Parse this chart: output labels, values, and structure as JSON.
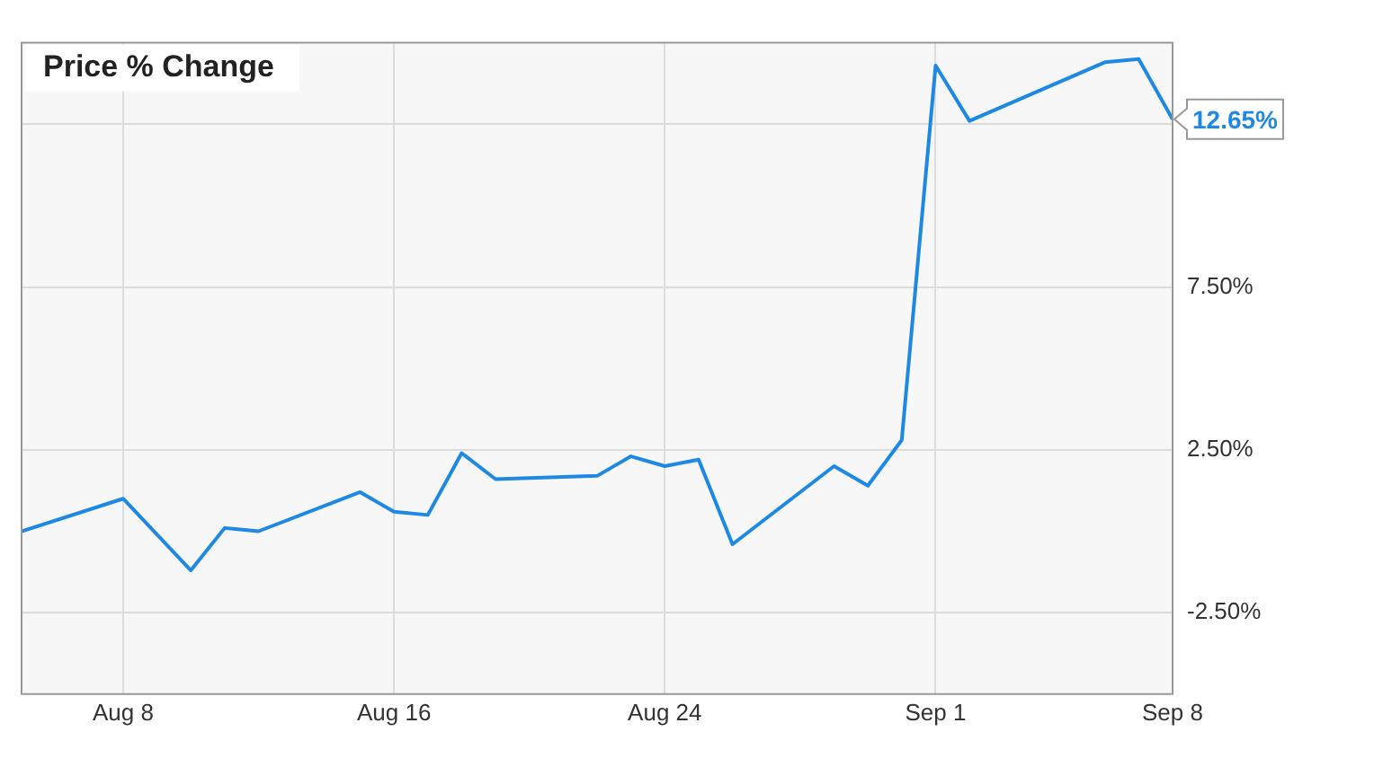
{
  "chart_data": {
    "type": "line",
    "title": "Price % Change",
    "x": [
      "--08-05",
      "--08-08",
      "--08-10",
      "--08-11",
      "--08-12",
      "--08-15",
      "--08-16",
      "--08-17",
      "--08-18",
      "--08-19",
      "--08-22",
      "--08-23",
      "--08-24",
      "--08-25",
      "--08-26",
      "--08-29",
      "--08-30",
      "--08-31",
      "--09-01",
      "--09-02",
      "--09-06",
      "--09-07",
      "--09-08"
    ],
    "series": [
      {
        "color": "#1e88e5",
        "values": [
          0.0,
          1.0,
          -1.2,
          0.1,
          0.0,
          1.2,
          0.6,
          0.5,
          2.4,
          1.6,
          1.7,
          2.3,
          2.0,
          2.2,
          -0.4,
          2.0,
          1.4,
          2.8,
          14.3,
          12.6,
          14.4,
          14.5,
          12.65
        ],
        "value_labels": [
          null,
          null,
          null,
          null,
          null,
          null,
          null,
          null,
          null,
          null,
          null,
          null,
          null,
          null,
          null,
          null,
          null,
          null,
          null,
          null,
          null,
          null,
          "12.65%"
        ]
      }
    ],
    "xlim": [
      "--08-05",
      "--09-08"
    ],
    "xticks": [
      {
        "value": "--08-08",
        "label": "Aug 8"
      },
      {
        "value": "--08-16",
        "label": "Aug 16"
      },
      {
        "value": "--08-24",
        "label": "Aug 24"
      },
      {
        "value": "--09-01",
        "label": "Sep 1"
      },
      {
        "value": "--09-08",
        "label": "Sep 8"
      }
    ],
    "ylim": [
      -5,
      15
    ],
    "yticks": [
      {
        "value": -2.5,
        "label": "-2.50%"
      },
      {
        "value": 2.5,
        "label": "2.50%"
      },
      {
        "value": 7.5,
        "label": "7.50%"
      },
      {
        "value": 12.5,
        "label": null
      }
    ],
    "grid": true,
    "legend": false,
    "marker": "none",
    "line_style": "solid"
  }
}
